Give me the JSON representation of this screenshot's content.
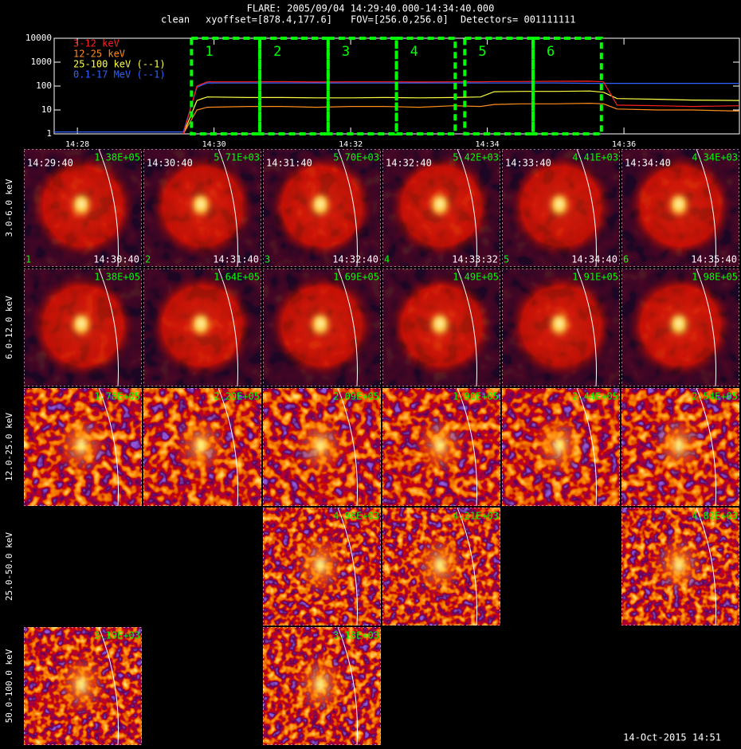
{
  "header": {
    "title": "FLARE: 2005/09/04 14:29:40.000-14:34:40.000",
    "mode": "clean",
    "xyoffset": "xyoffset=[878.4,177.6]",
    "fov": "FOV=[256.0,256.0]",
    "detectors": "Detectors= 001111111"
  },
  "chart_data": {
    "type": "line",
    "log_y": true,
    "legend": "upper left",
    "x": [
      27.66,
      29.55,
      29.75,
      29.9,
      30.5,
      31,
      31.5,
      32,
      32.5,
      33,
      33.5,
      33.9,
      34.1,
      34.5,
      35,
      35.5,
      35.7,
      35.9,
      36.5,
      37,
      37.69
    ],
    "series": [
      {
        "name": "3-12 keV",
        "color": "#ff2020",
        "values": [
          null,
          1,
          100,
          150,
          150,
          152,
          148,
          150,
          150,
          148,
          150,
          150,
          155,
          155,
          158,
          160,
          150,
          16,
          15,
          14,
          15
        ]
      },
      {
        "name": "12-25 keV",
        "color": "#ff8c1a",
        "values": [
          null,
          1,
          10,
          13,
          14,
          14,
          13,
          14,
          14,
          13,
          15,
          14,
          17,
          18,
          18,
          19,
          18,
          11,
          10,
          10,
          9
        ]
      },
      {
        "name": "25-100 keV (--1)",
        "color": "#ffff40",
        "values": [
          null,
          1,
          25,
          35,
          33,
          33,
          32,
          32,
          33,
          32,
          33,
          35,
          58,
          60,
          60,
          62,
          55,
          30,
          28,
          26,
          25
        ]
      },
      {
        "name": "0.1-17 MeV (--1)",
        "color": "#3060ff",
        "values": [
          1.2,
          1.2,
          90,
          135,
          135,
          135,
          135,
          135,
          135,
          135,
          135,
          135,
          135,
          135,
          135,
          130,
          130,
          130,
          130,
          130,
          130
        ]
      }
    ],
    "xlim": [
      27.66,
      37.69
    ],
    "xticks": [
      {
        "value": 28,
        "label": "14:28"
      },
      {
        "value": 30,
        "label": "14:30"
      },
      {
        "value": 32,
        "label": "14:32"
      },
      {
        "value": 34,
        "label": "14:34"
      },
      {
        "value": 36,
        "label": "14:36"
      }
    ],
    "ylim": [
      1,
      10000
    ],
    "yticks": [
      1,
      10,
      100,
      1000,
      10000
    ],
    "intervals": [
      {
        "label": "1",
        "start": 29.67,
        "end": 30.67
      },
      {
        "label": "2",
        "start": 30.67,
        "end": 31.67
      },
      {
        "label": "3",
        "start": 31.67,
        "end": 32.67
      },
      {
        "label": "4",
        "start": 32.67,
        "end": 33.53
      },
      {
        "label": "5",
        "start": 33.67,
        "end": 34.67
      },
      {
        "label": "6",
        "start": 34.67,
        "end": 35.67
      }
    ],
    "interval_color": "#00ff00"
  },
  "panels": {
    "start_times": [
      "14:29:40",
      "14:30:40",
      "14:31:40",
      "14:32:40",
      "14:33:40",
      "14:34:40"
    ],
    "end_times": [
      "14:30:40",
      "14:31:40",
      "14:32:40",
      "14:33:32",
      "14:34:40",
      "14:35:40"
    ],
    "rows": [
      {
        "label": "3.0-6.0 keV",
        "peaks": [
          "1.38E+05",
          "5.71E+03",
          "5.70E+03",
          "5.42E+03",
          "4.41E+03",
          "4.34E+03"
        ]
      },
      {
        "label": "6.0-12.0 keV",
        "peaks": [
          "1.38E+05",
          "1.64E+05",
          "1.69E+05",
          "1.49E+05",
          "1.91E+05",
          "1.98E+05"
        ]
      },
      {
        "label": "12.0-25.0 keV",
        "peaks": [
          "1.78E+05",
          "2.20E+05",
          "2.09E+05",
          "1.90E+05",
          "2.44E+05",
          "2.54E+05"
        ]
      },
      {
        "label": "25.0-50.0 keV",
        "peaks": [
          null,
          null,
          "4.98E+03",
          "4.21E+03",
          null,
          "4.82E+03"
        ]
      },
      {
        "label": "50.0-100.0 keV",
        "peaks": [
          "3.19E+03",
          null,
          "3.18E+03",
          null,
          null,
          null
        ]
      }
    ]
  },
  "footer": "14-Oct-2015 14:51"
}
